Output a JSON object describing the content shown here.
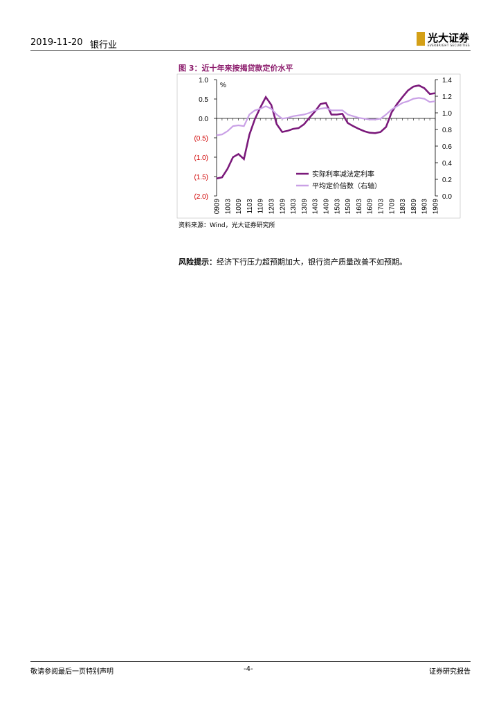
{
  "header": {
    "date": "2019-11-20",
    "sector": "银行业",
    "logo": "光大证券",
    "logo_en": "EVERBRIGHT SECURITIES"
  },
  "figure_title": "图 3：近十年来按揭贷款定价水平",
  "chart_data": {
    "type": "line",
    "unit_label": "%",
    "categories": [
      "0909",
      null,
      "1003",
      null,
      "1009",
      null,
      "1103",
      null,
      "1109",
      null,
      "1203",
      null,
      "1209",
      null,
      "1303",
      null,
      "1309",
      null,
      "1403",
      null,
      "1409",
      null,
      "1503",
      null,
      "1509",
      null,
      "1603",
      null,
      "1609",
      null,
      "1703",
      null,
      "1709",
      null,
      "1803",
      null,
      "1809",
      null,
      "1903",
      null,
      "1909"
    ],
    "series": [
      {
        "name": "实际利率减法定利率",
        "color": "#7b1a7b",
        "axis": "y",
        "values": [
          -1.55,
          -1.52,
          -1.3,
          -1.0,
          -0.92,
          -1.05,
          -0.42,
          -0.02,
          0.28,
          0.55,
          0.35,
          -0.15,
          -0.35,
          -0.32,
          -0.27,
          -0.25,
          -0.15,
          0.02,
          0.18,
          0.37,
          0.4,
          0.1,
          0.1,
          0.12,
          -0.12,
          -0.2,
          -0.27,
          -0.33,
          -0.37,
          -0.38,
          -0.35,
          -0.22,
          0.15,
          0.37,
          0.55,
          0.72,
          0.82,
          0.85,
          0.78,
          0.63,
          0.65
        ]
      },
      {
        "name": "平均定价倍数（右轴）",
        "color": "#c9a0e6",
        "axis": "y2",
        "values": [
          0.73,
          0.74,
          0.78,
          0.84,
          0.85,
          0.84,
          0.98,
          1.03,
          1.05,
          1.08,
          1.05,
          0.98,
          0.93,
          0.94,
          0.96,
          0.97,
          0.98,
          1.0,
          1.03,
          1.05,
          1.06,
          1.03,
          1.03,
          1.03,
          0.98,
          0.96,
          0.94,
          0.93,
          0.92,
          0.92,
          0.93,
          0.98,
          1.04,
          1.08,
          1.12,
          1.14,
          1.17,
          1.18,
          1.17,
          1.13,
          1.14
        ]
      }
    ],
    "ylim": [
      -2.0,
      1.0
    ],
    "yticks": [
      {
        "value": 1,
        "label": "1.0"
      },
      0.5,
      {
        "value": 0,
        "label": "0.0"
      },
      {
        "value": -0.5,
        "label": "(0.5)"
      },
      {
        "value": -1,
        "label": "(1.0)"
      },
      {
        "value": -1.5,
        "label": "(1.5)"
      },
      {
        "value": -2,
        "label": "(2.0)"
      }
    ],
    "y2lim": [
      0.0,
      1.4
    ],
    "y2ticks": [
      {
        "value": 1.4,
        "label": "1.4"
      },
      {
        "value": 1.2,
        "label": "1.2"
      },
      {
        "value": 1,
        "label": "1.0"
      },
      {
        "value": 0.8,
        "label": "0.8"
      },
      {
        "value": 0.6,
        "label": "0.6"
      },
      {
        "value": 0.4,
        "label": "0.4"
      },
      {
        "value": 0.2,
        "label": "0.2"
      },
      {
        "value": 0,
        "label": "0.0"
      }
    ]
  },
  "source": "资料来源：Wind，光大证券研究所",
  "risk": {
    "label": "风险提示：",
    "text": "经济下行压力超预期加大，银行资产质量改善不如预期。"
  },
  "footer": {
    "left": "敬请参阅最后一页特别声明",
    "page": "-4-",
    "right": "证券研究报告"
  }
}
